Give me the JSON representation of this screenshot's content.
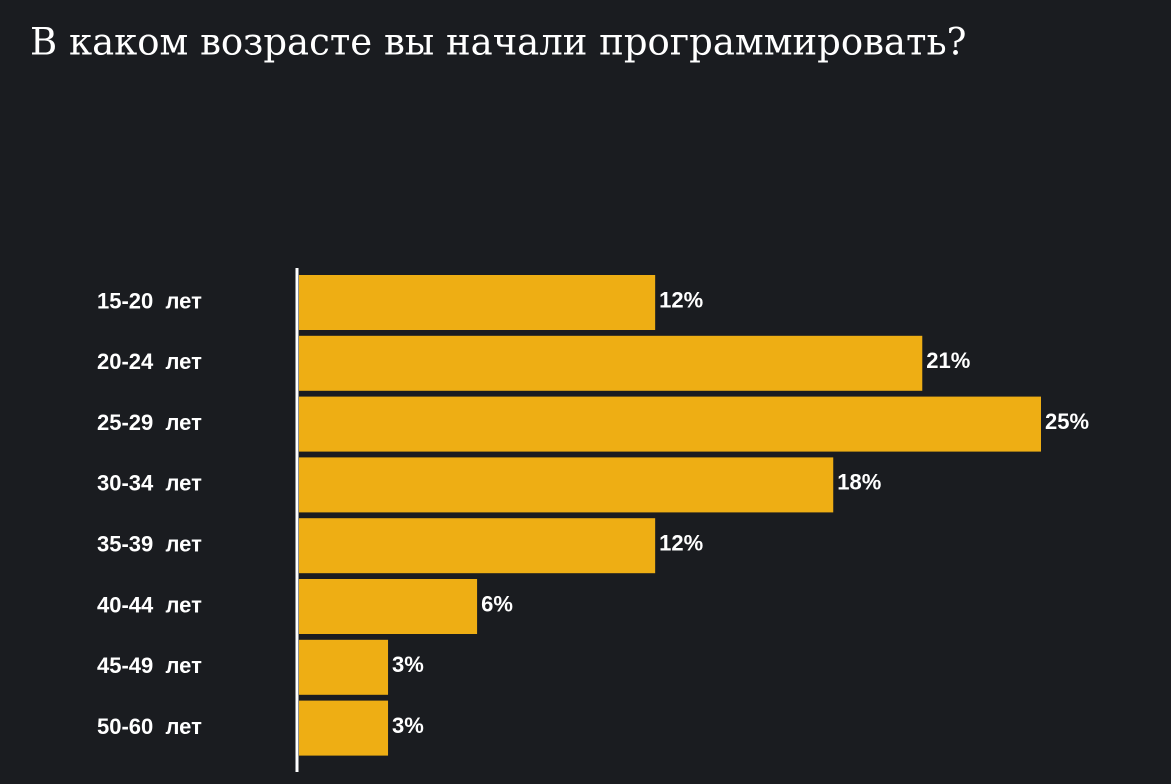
{
  "chart_data": {
    "type": "bar",
    "orientation": "horizontal",
    "title": "В каком возрасте вы начали программировать?",
    "categories": [
      "15-20  лет",
      "20-24  лет",
      "25-29  лет",
      "30-34  лет",
      "35-39  лет",
      "40-44  лет",
      "45-49  лет",
      "50-60  лет"
    ],
    "values": [
      12,
      21,
      25,
      18,
      12,
      6,
      3,
      3
    ],
    "value_labels": [
      "12%",
      "21%",
      "25%",
      "18%",
      "12%",
      "6%",
      "3%",
      "3%"
    ],
    "color": "#eeae14"
  }
}
